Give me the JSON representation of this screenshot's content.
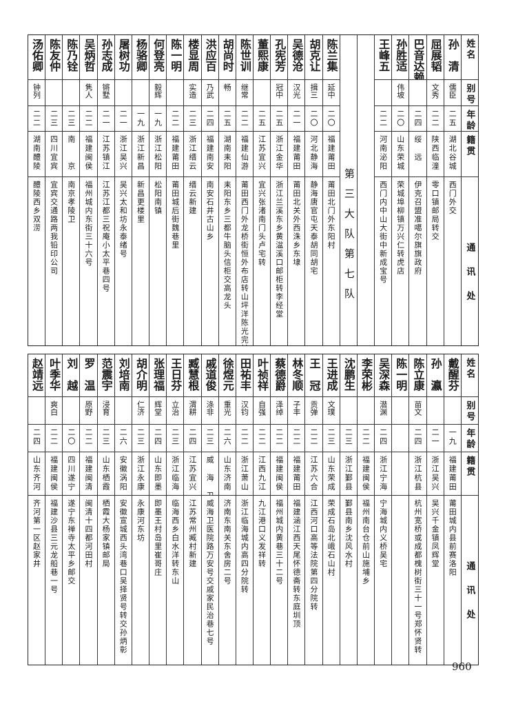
{
  "headers": {
    "name": "姓名",
    "alias": "别号",
    "age": "年龄",
    "origin": "籍贯",
    "address": "通讯处"
  },
  "top_table": {
    "group_a": [
      {
        "name": "孙　清",
        "alias": "儒臣",
        "age": "二五",
        "origin": "湖北谷城",
        "address": "西门外交"
      },
      {
        "name": "屈展韬",
        "alias": "文秀",
        "age": "二二",
        "origin": "陕西临潼",
        "address": "零口镇邮局转交"
      },
      {
        "name": "巴音达赖",
        "alias": "",
        "age": "二四",
        "origin": "绥　远",
        "address": "伊克召盟准噶尔旗旗政府"
      },
      {
        "name": "孙胜适",
        "alias": "伟坡",
        "age": "二〇",
        "origin": "山东荣城",
        "address": "荣城埠柳镇万兴仁转虎店"
      },
      {
        "name": "王峰五",
        "alias": "",
        "age": "二二",
        "origin": "河南泌阳",
        "address": "西门内中山大街中新成宝号"
      }
    ],
    "team_label": "第三大队第七队",
    "group_b": [
      {
        "name": "陈兰集",
        "alias": "延中",
        "age": "二〇",
        "origin": "福建莆田",
        "address": "莆田北门外东阳村"
      },
      {
        "name": "胡克让",
        "alias": "揖三",
        "age": "二〇",
        "origin": "河北静海",
        "address": "静海唐官屯天泰胡同胡宅"
      },
      {
        "name": "吴德沧",
        "alias": "汉光",
        "age": "二一",
        "origin": "福建莆田",
        "address": "莆田北关外西洙乡东埭"
      },
      {
        "name": "孔宪芳",
        "alias": "冠中",
        "age": "二五",
        "origin": "浙江金华",
        "address": "浙江兰溪东乡黄湓溪口邮柜转李经堂"
      },
      {
        "name": "董熙康",
        "alias": "",
        "age": "二五",
        "origin": "江苏宜兴",
        "address": "宜兴张渚南门头卢宅转"
      },
      {
        "name": "陈世训",
        "alias": "继常",
        "age": "二二",
        "origin": "福建仙游",
        "address": "莆田西门外龙桥街恒外布店转山坪洋陈光完转"
      },
      {
        "name": "胡尚时",
        "alias": "畅",
        "age": "二五",
        "origin": "湖南耒阳",
        "address": "耒阳东乡三都牛脑头信柜交高龙头"
      },
      {
        "name": "洪应百",
        "alias": "乃武",
        "age": "二四",
        "origin": "福建南安",
        "address": "南安石井古山乡"
      },
      {
        "name": "楼显周",
        "alias": "实造",
        "age": "二三",
        "origin": "浙江缙云",
        "address": "缙云新建"
      },
      {
        "name": "陈一明",
        "alias": "",
        "age": "二二",
        "origin": "福建莆田",
        "address": "莆田城后街魏巷里"
      },
      {
        "name": "何登亮",
        "alias": "毅辉",
        "age": "一九",
        "origin": "浙江松阳",
        "address": "松阳南镇"
      },
      {
        "name": "杨骆卿",
        "alias": "",
        "age": "一九",
        "origin": "浙江新昌",
        "address": "新昌更楼里"
      },
      {
        "name": "屠树功",
        "alias": "",
        "age": "二一",
        "origin": "浙江吴兴",
        "address": "吴兴太和坊永泰绪号"
      },
      {
        "name": "孙志成",
        "alias": "锵墅",
        "age": "二一",
        "origin": "江苏镇江",
        "address": "江苏江都三祝庵小太平巷四号"
      },
      {
        "name": "吴炳哲",
        "alias": "隽人",
        "age": "二二",
        "origin": "福建闽侯",
        "address": "福州城内东街三十六号"
      },
      {
        "name": "陈乃铨",
        "alias": "",
        "age": "二三",
        "origin": "南　　京",
        "address": "南京孝陵卫"
      },
      {
        "name": "陈友仲",
        "alias": "",
        "age": "二三",
        "origin": "四川宜宾",
        "address": "宜宾交通路两我铅印公司"
      },
      {
        "name": "汤佑卿",
        "alias": "钟列",
        "age": "二二",
        "origin": "湖南醴陵",
        "address": "醴陵西乡双涝"
      }
    ]
  },
  "bottom_table": {
    "entries": [
      {
        "name": "戴醒芬",
        "alias": "",
        "age": "一九",
        "origin": "福建莆田",
        "address": "莆田城内县前赛洛阳"
      },
      {
        "name": "孙　瀛",
        "alias": "",
        "age": "二一",
        "origin": "浙江吴兴",
        "address": "吴兴千金镇凤辉堂"
      },
      {
        "name": "陈立康",
        "alias": "苗文",
        "age": "二四",
        "origin": "浙江杭县",
        "address": "杭州宽桥或成都槐树街三十一号郑怀贤转"
      },
      {
        "name": "陈一明",
        "alias": "",
        "age": "",
        "origin": "",
        "address": ""
      },
      {
        "name": "吴深森",
        "alias": "潜渊",
        "age": "二四",
        "origin": "浙江宁海",
        "address": "宁海城内义桥吴宅"
      },
      {
        "name": "李荣彬",
        "alias": "",
        "age": "二二",
        "origin": "福建闽侯",
        "address": "福州南台仓前山施埔乡"
      },
      {
        "name": "沈鹏生",
        "alias": "",
        "age": "二三",
        "origin": "浙江鄞县",
        "address": "鄞县南乡沈风水村"
      },
      {
        "name": "王进成",
        "alias": "文璞",
        "age": "二三",
        "origin": "山东荣成",
        "address": "荣成石岛北峨石山村"
      },
      {
        "name": "王　冠",
        "alias": "贡弹",
        "age": "二二",
        "origin": "江苏六合",
        "address": "江西河口高等法院第四分院转"
      },
      {
        "name": "林冬顺",
        "alias": "子丰",
        "age": "二二",
        "origin": "福建莆田",
        "address": "福建涵江西天尾怀德斋转东庭圳顶"
      },
      {
        "name": "蔡德爵",
        "alias": "泽绰",
        "age": "二二",
        "origin": "福建闽侯",
        "address": "福州城内黄巷三十二号"
      },
      {
        "name": "叶祯祥",
        "alias": "自强",
        "age": "二二",
        "origin": "江西九江",
        "address": "九江港口义发祥转"
      },
      {
        "name": "田祐丰",
        "alias": "汉钧",
        "age": "二二",
        "origin": "浙江萧山",
        "address": "浙江临海城内高四分院转"
      },
      {
        "name": "徐煜元",
        "alias": "重光",
        "age": "二六",
        "origin": "山东济南",
        "address": "济南东南关东舍房二号"
      },
      {
        "name": "戚道俊",
        "alias": "涤非",
        "age": "二三",
        "origin": "威　海　卫",
        "address": "威海卫医院路万安号交戚家民治巷七号"
      },
      {
        "name": "臧慧根",
        "alias": "渭耕",
        "age": "二四",
        "origin": "江苏宜兴",
        "address": "江苏常州臧村新建"
      },
      {
        "name": "王日芬",
        "alias": "立治",
        "age": "二三",
        "origin": "浙江临海",
        "address": "临海西乡白水洋转东山"
      },
      {
        "name": "张理福",
        "alias": "辉堂",
        "age": "二四",
        "origin": "山东即墨",
        "address": "即墨王村岛里崔哥庄"
      },
      {
        "name": "胡介明",
        "alias": "仁济",
        "age": "二三",
        "origin": "浙江永康",
        "address": "永康河东坊"
      },
      {
        "name": "刘培南",
        "alias": "",
        "age": "二六",
        "origin": "安徽涡阳",
        "address": "安徽宣城西头湾巷口吴择贤号转交孙炳彰"
      },
      {
        "name": "范震宇",
        "alias": "浸育",
        "age": "二三",
        "origin": "山东栖霞",
        "address": "栖霞大杨家镇邮局"
      },
      {
        "name": "罗　温",
        "alias": "原野",
        "age": "二二",
        "origin": "福建闽清",
        "address": "闽清十四都河田村"
      },
      {
        "name": "刘　越",
        "alias": "",
        "age": "二〇",
        "origin": "四川遂宁",
        "address": "遂宁东禅寺太平乡邮交"
      },
      {
        "name": "叶季华",
        "alias": "爽白",
        "age": "二二",
        "origin": "福建闽侯",
        "address": "福建沙县三元龙船巷一号"
      },
      {
        "name": "赵靖远",
        "alias": "",
        "age": "二四",
        "origin": "山东齐河",
        "address": "齐河第一区赵家井"
      }
    ]
  },
  "page_number": "960"
}
